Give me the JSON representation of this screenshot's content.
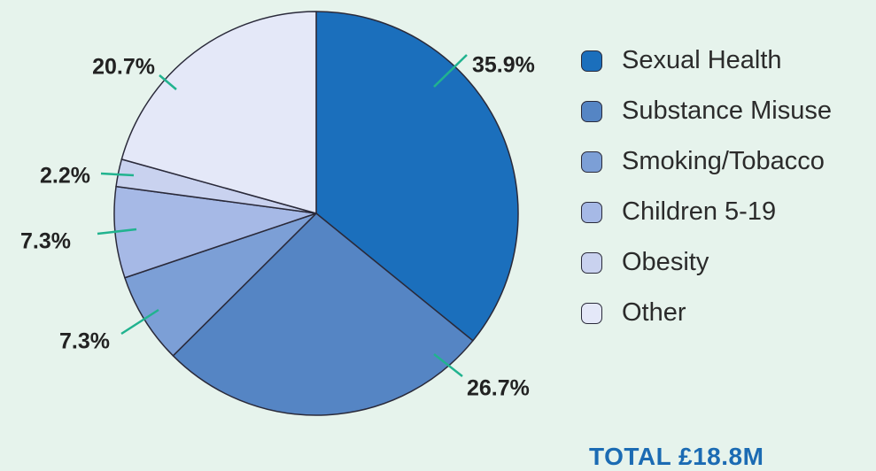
{
  "chart_data": {
    "type": "pie",
    "categories": [
      "Sexual Health",
      "Substance Misuse",
      "Smoking/Tobacco",
      "Children 5-19",
      "Obesity",
      "Other"
    ],
    "values": [
      35.9,
      26.7,
      7.3,
      7.3,
      2.2,
      20.7
    ],
    "value_labels": [
      "35.9%",
      "26.7%",
      "7.3%",
      "7.3%",
      "2.2%",
      "20.7%"
    ],
    "colors": [
      "#1b6fbc",
      "#5585c4",
      "#7c9fd6",
      "#a6b9e6",
      "#c9d2ef",
      "#e4e8f8"
    ],
    "total_label": "TOTAL £18.8M",
    "legend_position": "right"
  }
}
